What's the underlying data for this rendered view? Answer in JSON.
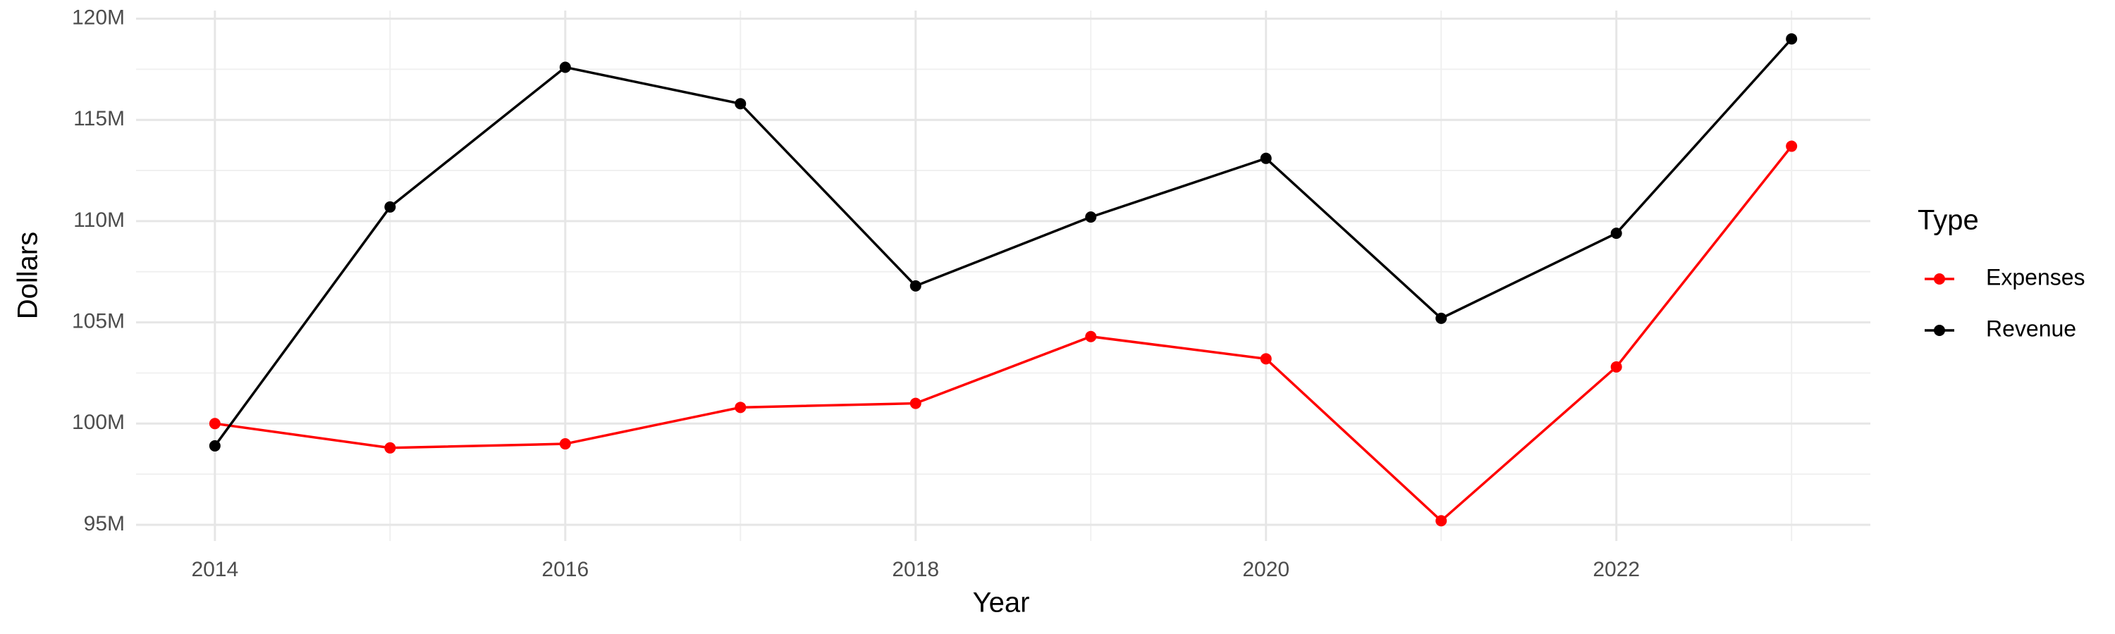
{
  "chart_data": {
    "type": "line",
    "x_label": "Year",
    "y_label": "Dollars",
    "legend_title": "Type",
    "x": [
      2014,
      2015,
      2016,
      2017,
      2018,
      2019,
      2020,
      2021,
      2022,
      2023
    ],
    "series": [
      {
        "name": "Expenses",
        "color": "#ff0000",
        "values": [
          100000000,
          98800000,
          99000000,
          100800000,
          101000000,
          104300000,
          103200000,
          95200000,
          102800000,
          113700000
        ]
      },
      {
        "name": "Revenue",
        "color": "#000000",
        "values": [
          98900000,
          110700000,
          117600000,
          115800000,
          106800000,
          110200000,
          113100000,
          105200000,
          109400000,
          119000000
        ]
      }
    ],
    "xlim": [
      2013.55,
      2023.45
    ],
    "xticks": [
      2014,
      2016,
      2018,
      2020,
      2022
    ],
    "ylim": [
      94200000,
      120400000
    ],
    "yticks": [
      {
        "value": 95000000,
        "label": "95M"
      },
      {
        "value": 100000000,
        "label": "100M"
      },
      {
        "value": 105000000,
        "label": "105M"
      },
      {
        "value": 110000000,
        "label": "110M"
      },
      {
        "value": 115000000,
        "label": "115M"
      },
      {
        "value": 120000000,
        "label": "120M"
      }
    ],
    "grid": true,
    "legend": "right"
  }
}
